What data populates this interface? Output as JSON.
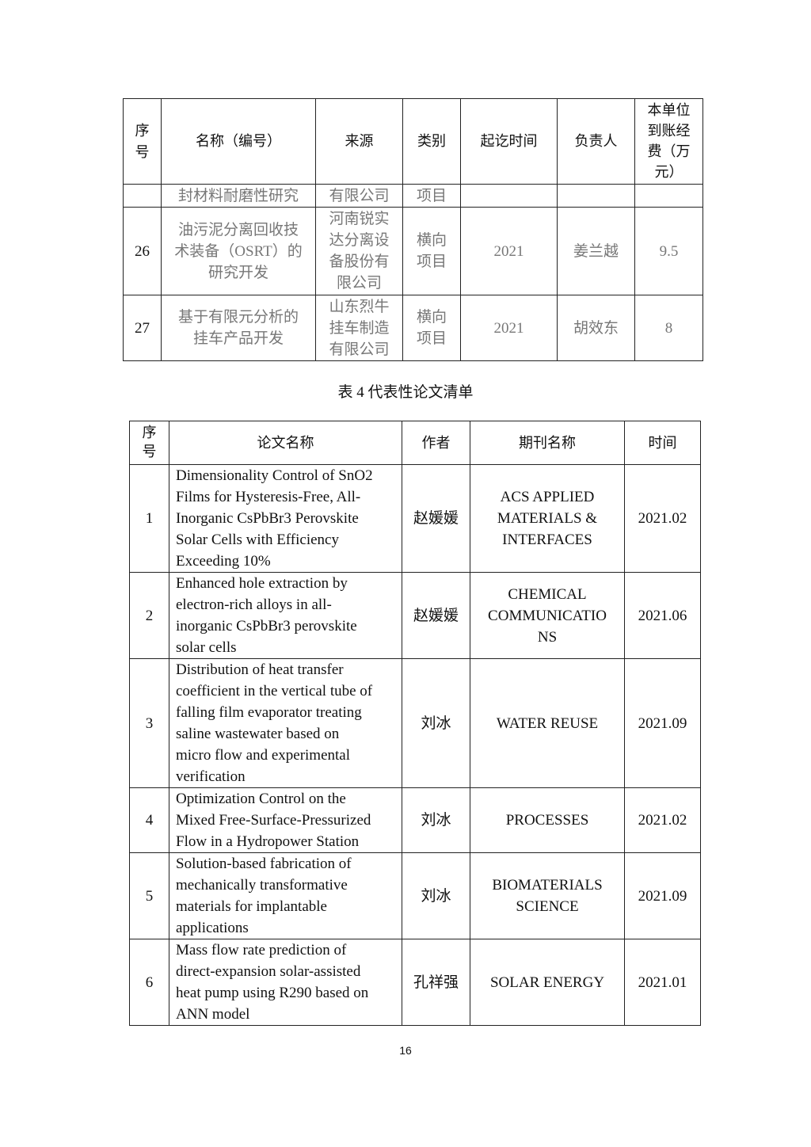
{
  "table3": {
    "headers": [
      "序\n号",
      "名称（编号）",
      "来源",
      "类别",
      "起讫时间",
      "负责人",
      "本单位\n到账经\n费（万\n元）"
    ],
    "rows": [
      [
        "",
        "封材料耐磨性研究",
        "有限公司",
        "项目",
        "",
        "",
        ""
      ],
      [
        "26",
        "油污泥分离回收技\n术装备（OSRT）的\n研究开发",
        "河南锐实\n达分离设\n备股份有\n限公司",
        "横向\n项目",
        "2021",
        "姜兰越",
        "9.5"
      ],
      [
        "27",
        "基于有限元分析的\n挂车产品开发",
        "山东烈牛\n挂车制造\n有限公司",
        "横向\n项目",
        "2021",
        "胡效东",
        "8"
      ]
    ]
  },
  "table4_caption": "表 4  代表性论文清单",
  "table4": {
    "headers": [
      "序\n号",
      "论文名称",
      "作者",
      "期刊名称",
      "时间"
    ],
    "rows": [
      [
        "1",
        "Dimensionality Control of SnO2\nFilms for Hysteresis-Free, All-\nInorganic CsPbBr3 Perovskite\nSolar Cells with Efficiency\nExceeding 10%",
        "赵媛媛",
        "ACS APPLIED\nMATERIALS &\nINTERFACES",
        "2021.02"
      ],
      [
        "2",
        "Enhanced hole extraction by\nelectron-rich alloys in all-\ninorganic CsPbBr3 perovskite\nsolar cells",
        "赵媛媛",
        "CHEMICAL\nCOMMUNICATIO\nNS",
        "2021.06"
      ],
      [
        "3",
        "Distribution of heat transfer\ncoefficient in the vertical tube of\nfalling film evaporator treating\nsaline wastewater based on\nmicro flow and experimental\nverification",
        "刘冰",
        "WATER REUSE",
        "2021.09"
      ],
      [
        "4",
        "Optimization Control on the\nMixed Free-Surface-Pressurized\nFlow in a Hydropower Station",
        "刘冰",
        "PROCESSES",
        "2021.02"
      ],
      [
        "5",
        "Solution-based fabrication of\nmechanically transformative\nmaterials for implantable\napplications",
        "刘冰",
        "BIOMATERIALS\nSCIENCE",
        "2021.09"
      ],
      [
        "6",
        "Mass flow rate prediction of\ndirect-expansion solar-assisted\nheat pump using R290 based on\nANN model",
        "孔祥强",
        "SOLAR ENERGY",
        "2021.01"
      ]
    ]
  },
  "page_number": "16"
}
